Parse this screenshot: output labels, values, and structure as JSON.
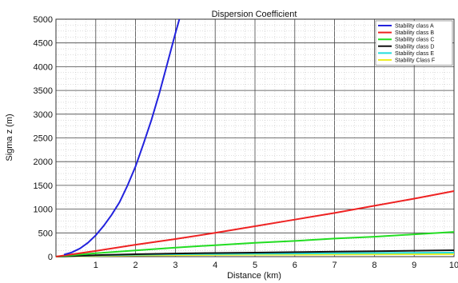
{
  "chart_data": {
    "type": "line",
    "title": "Dispersion Coefficient",
    "xlabel": "Distance (km)",
    "ylabel": "Sigma z  (m)",
    "xlim": [
      0,
      10
    ],
    "ylim": [
      0,
      5000
    ],
    "xticks": [
      1,
      2,
      3,
      4,
      5,
      6,
      7,
      8,
      9,
      10
    ],
    "yticks": [
      0,
      500,
      1000,
      1500,
      2000,
      2500,
      3000,
      3500,
      4000,
      4500,
      5000
    ],
    "grid": true,
    "legend_position": "top-right",
    "series": [
      {
        "name": "Stability class A",
        "color": "#2222dd",
        "x": [
          0.2,
          0.4,
          0.6,
          0.8,
          1.0,
          1.2,
          1.4,
          1.6,
          1.8,
          2.0,
          2.2,
          2.4,
          2.6,
          2.8,
          3.0,
          3.1
        ],
        "y": [
          40,
          90,
          170,
          290,
          450,
          650,
          880,
          1150,
          1500,
          1900,
          2380,
          2880,
          3450,
          4070,
          4700,
          5000
        ]
      },
      {
        "name": "Stability class B",
        "color": "#ee2222",
        "x": [
          0,
          1,
          2,
          3,
          4,
          5,
          6,
          7,
          8,
          9,
          10
        ],
        "y": [
          0,
          120,
          250,
          370,
          500,
          640,
          780,
          920,
          1070,
          1220,
          1380
        ]
      },
      {
        "name": "Stability class C",
        "color": "#22dd22",
        "x": [
          0,
          1,
          2,
          3,
          4,
          5,
          6,
          7,
          8,
          9,
          10
        ],
        "y": [
          0,
          70,
          130,
          190,
          240,
          290,
          330,
          380,
          420,
          470,
          520
        ]
      },
      {
        "name": "Stability class D",
        "color": "#111111",
        "x": [
          0,
          1,
          2,
          3,
          4,
          5,
          6,
          7,
          8,
          9,
          10
        ],
        "y": [
          0,
          30,
          50,
          65,
          75,
          85,
          95,
          105,
          115,
          125,
          135
        ]
      },
      {
        "name": "Stability class E",
        "color": "#22dddd",
        "x": [
          0,
          1,
          2,
          3,
          4,
          5,
          6,
          7,
          8,
          9,
          10
        ],
        "y": [
          0,
          25,
          40,
          50,
          55,
          60,
          65,
          70,
          75,
          80,
          85
        ]
      },
      {
        "name": "Stability Class F",
        "color": "#eeee22",
        "x": [
          0,
          1,
          2,
          3,
          4,
          5,
          6,
          7,
          8,
          9,
          10
        ],
        "y": [
          0,
          15,
          25,
          30,
          35,
          40,
          42,
          45,
          48,
          50,
          52
        ]
      }
    ]
  }
}
